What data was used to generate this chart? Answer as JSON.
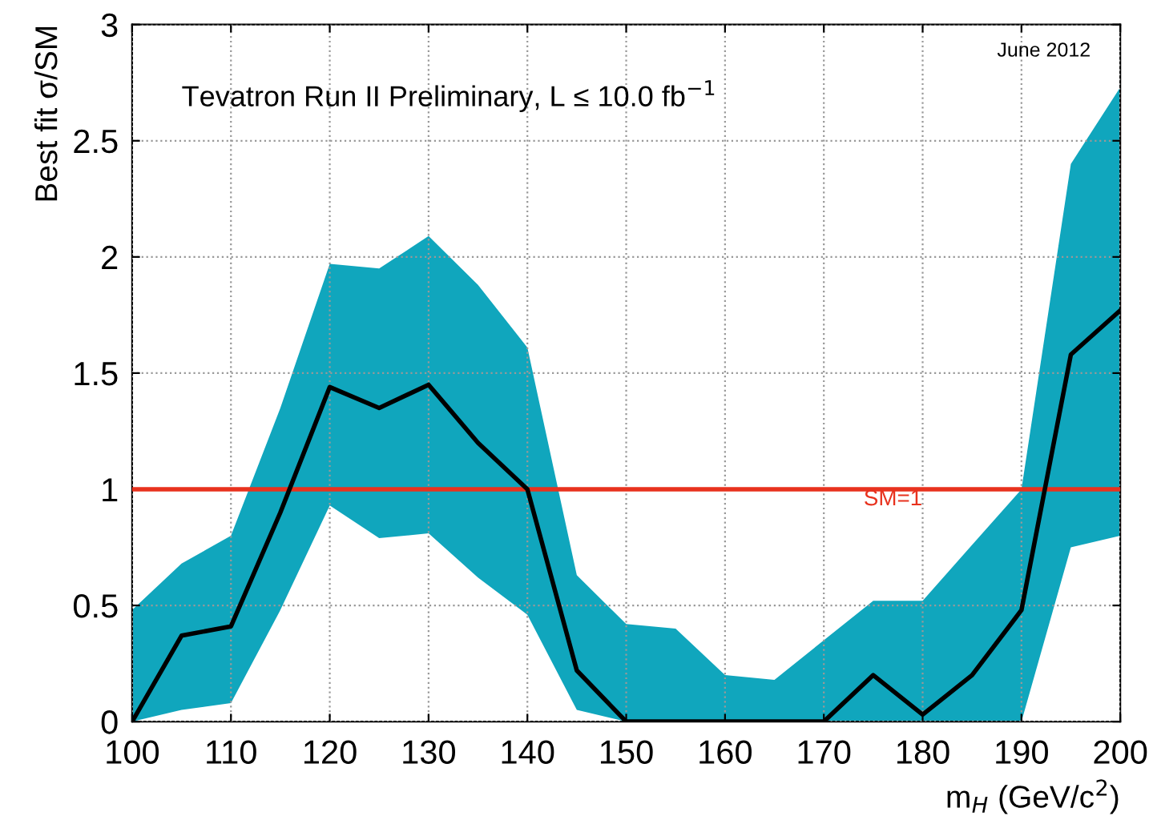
{
  "chart_data": {
    "type": "line",
    "xlabel": "m$_{H}$ (GeV/c$^{2}$)",
    "ylabel": "Best fit σ/SM",
    "annotations": [
      "June 2012",
      "Tevatron Run II Preliminary, L ≤ 10.0 fb$^{−1}$"
    ],
    "x": [
      100,
      105,
      110,
      115,
      120,
      125,
      130,
      135,
      140,
      145,
      150,
      155,
      160,
      165,
      170,
      175,
      180,
      185,
      190,
      195,
      200
    ],
    "series": [
      {
        "color": "#000000",
        "values": [
          0,
          0.37,
          0.41,
          0.9,
          1.44,
          1.35,
          1.45,
          1.2,
          1.0,
          0.22,
          0,
          0,
          0,
          0,
          0,
          0.2,
          0.03,
          0.2,
          0.48,
          1.58,
          1.77
        ],
        "lower": [
          0,
          0.05,
          0.08,
          0.48,
          0.93,
          0.79,
          0.81,
          0.62,
          0.46,
          0.05,
          0,
          0,
          0,
          0,
          0,
          0,
          0,
          0,
          0,
          0.75,
          0.8
        ],
        "upper": [
          0.48,
          0.68,
          0.8,
          1.35,
          1.97,
          1.95,
          2.09,
          1.88,
          1.61,
          0.63,
          0.42,
          0.4,
          0.2,
          0.18,
          0.35,
          0.52,
          0.52,
          0.76,
          1.0,
          2.4,
          2.73
        ]
      }
    ],
    "xlim": [
      100,
      200
    ],
    "xticks": [
      100,
      110,
      120,
      130,
      140,
      150,
      160,
      170,
      180,
      190,
      200
    ],
    "ylim": [
      0,
      3
    ],
    "yticks": [
      0,
      0.5,
      1,
      1.5,
      2,
      2.5,
      3
    ],
    "ref_lines": [
      {
        "axis": "y",
        "value": 1,
        "label": "SM=1",
        "color": "#e8321e"
      }
    ],
    "grid": true,
    "legend": false,
    "line_style": "solid",
    "marker": "none"
  }
}
